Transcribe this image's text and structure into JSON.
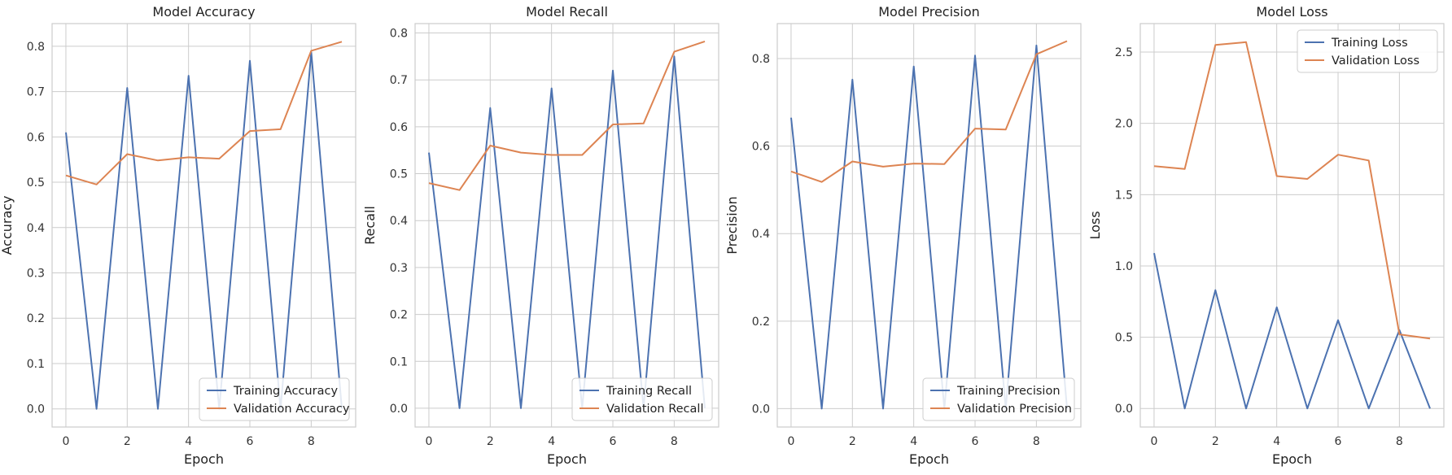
{
  "figure_colors": {
    "training": "#4c72b0",
    "validation": "#dd8452"
  },
  "chart_data": [
    {
      "type": "line",
      "title": "Model Accuracy",
      "xlabel": "Epoch",
      "ylabel": "Accuracy",
      "x": [
        0,
        1,
        2,
        3,
        4,
        5,
        6,
        7,
        8,
        9
      ],
      "xlim": [
        -0.45,
        9.45
      ],
      "ylim": [
        -0.04,
        0.85
      ],
      "xticks": [
        0,
        2,
        4,
        6,
        8
      ],
      "yticks": [
        0.0,
        0.1,
        0.2,
        0.3,
        0.4,
        0.5,
        0.6,
        0.7,
        0.8
      ],
      "ytick_labels": [
        "0.0",
        "0.1",
        "0.2",
        "0.3",
        "0.4",
        "0.5",
        "0.6",
        "0.7",
        "0.8"
      ],
      "grid": true,
      "legend_position": "lower right",
      "series": [
        {
          "name": "Training Accuracy",
          "color": "#4c72b0",
          "values": [
            0.61,
            0.0,
            0.708,
            0.0,
            0.735,
            0.0,
            0.768,
            0.0,
            0.787,
            0.0
          ]
        },
        {
          "name": "Validation Accuracy",
          "color": "#dd8452",
          "values": [
            0.515,
            0.495,
            0.562,
            0.548,
            0.555,
            0.552,
            0.613,
            0.617,
            0.79,
            0.81
          ]
        }
      ]
    },
    {
      "type": "line",
      "title": "Model Recall",
      "xlabel": "Epoch",
      "ylabel": "Recall",
      "x": [
        0,
        1,
        2,
        3,
        4,
        5,
        6,
        7,
        8,
        9
      ],
      "xlim": [
        -0.45,
        9.45
      ],
      "ylim": [
        -0.04,
        0.82
      ],
      "xticks": [
        0,
        2,
        4,
        6,
        8
      ],
      "yticks": [
        0.0,
        0.1,
        0.2,
        0.3,
        0.4,
        0.5,
        0.6,
        0.7,
        0.8
      ],
      "ytick_labels": [
        "0.0",
        "0.1",
        "0.2",
        "0.3",
        "0.4",
        "0.5",
        "0.6",
        "0.7",
        "0.8"
      ],
      "grid": true,
      "legend_position": "lower right",
      "series": [
        {
          "name": "Training Recall",
          "color": "#4c72b0",
          "values": [
            0.545,
            0.0,
            0.64,
            0.0,
            0.682,
            0.0,
            0.72,
            0.0,
            0.75,
            0.0
          ]
        },
        {
          "name": "Validation Recall",
          "color": "#dd8452",
          "values": [
            0.48,
            0.465,
            0.56,
            0.545,
            0.54,
            0.54,
            0.605,
            0.607,
            0.76,
            0.782
          ]
        }
      ]
    },
    {
      "type": "line",
      "title": "Model Precision",
      "xlabel": "Epoch",
      "ylabel": "Precision",
      "x": [
        0,
        1,
        2,
        3,
        4,
        5,
        6,
        7,
        8,
        9
      ],
      "xlim": [
        -0.45,
        9.45
      ],
      "ylim": [
        -0.042,
        0.88
      ],
      "xticks": [
        0,
        2,
        4,
        6,
        8
      ],
      "yticks": [
        0.0,
        0.2,
        0.4,
        0.6,
        0.8
      ],
      "ytick_labels": [
        "0.0",
        "0.2",
        "0.4",
        "0.6",
        "0.8"
      ],
      "grid": true,
      "legend_position": "lower right",
      "series": [
        {
          "name": "Training Precision",
          "color": "#4c72b0",
          "values": [
            0.665,
            0.0,
            0.752,
            0.0,
            0.782,
            0.0,
            0.807,
            0.0,
            0.83,
            0.0
          ]
        },
        {
          "name": "Validation Precision",
          "color": "#dd8452",
          "values": [
            0.542,
            0.518,
            0.565,
            0.553,
            0.56,
            0.559,
            0.64,
            0.638,
            0.81,
            0.84
          ]
        }
      ]
    },
    {
      "type": "line",
      "title": "Model Loss",
      "xlabel": "Epoch",
      "ylabel": "Loss",
      "x": [
        0,
        1,
        2,
        3,
        4,
        5,
        6,
        7,
        8,
        9
      ],
      "xlim": [
        -0.45,
        9.45
      ],
      "ylim": [
        -0.13,
        2.7
      ],
      "xticks": [
        0,
        2,
        4,
        6,
        8
      ],
      "yticks": [
        0.0,
        0.5,
        1.0,
        1.5,
        2.0,
        2.5
      ],
      "ytick_labels": [
        "0.0",
        "0.5",
        "1.0",
        "1.5",
        "2.0",
        "2.5"
      ],
      "grid": true,
      "legend_position": "upper right",
      "series": [
        {
          "name": "Training Loss",
          "color": "#4c72b0",
          "values": [
            1.09,
            0.0,
            0.83,
            0.0,
            0.71,
            0.0,
            0.62,
            0.0,
            0.55,
            0.0
          ]
        },
        {
          "name": "Validation Loss",
          "color": "#dd8452",
          "values": [
            1.7,
            1.68,
            2.55,
            2.57,
            1.63,
            1.61,
            1.78,
            1.74,
            0.52,
            0.49
          ]
        }
      ]
    }
  ]
}
